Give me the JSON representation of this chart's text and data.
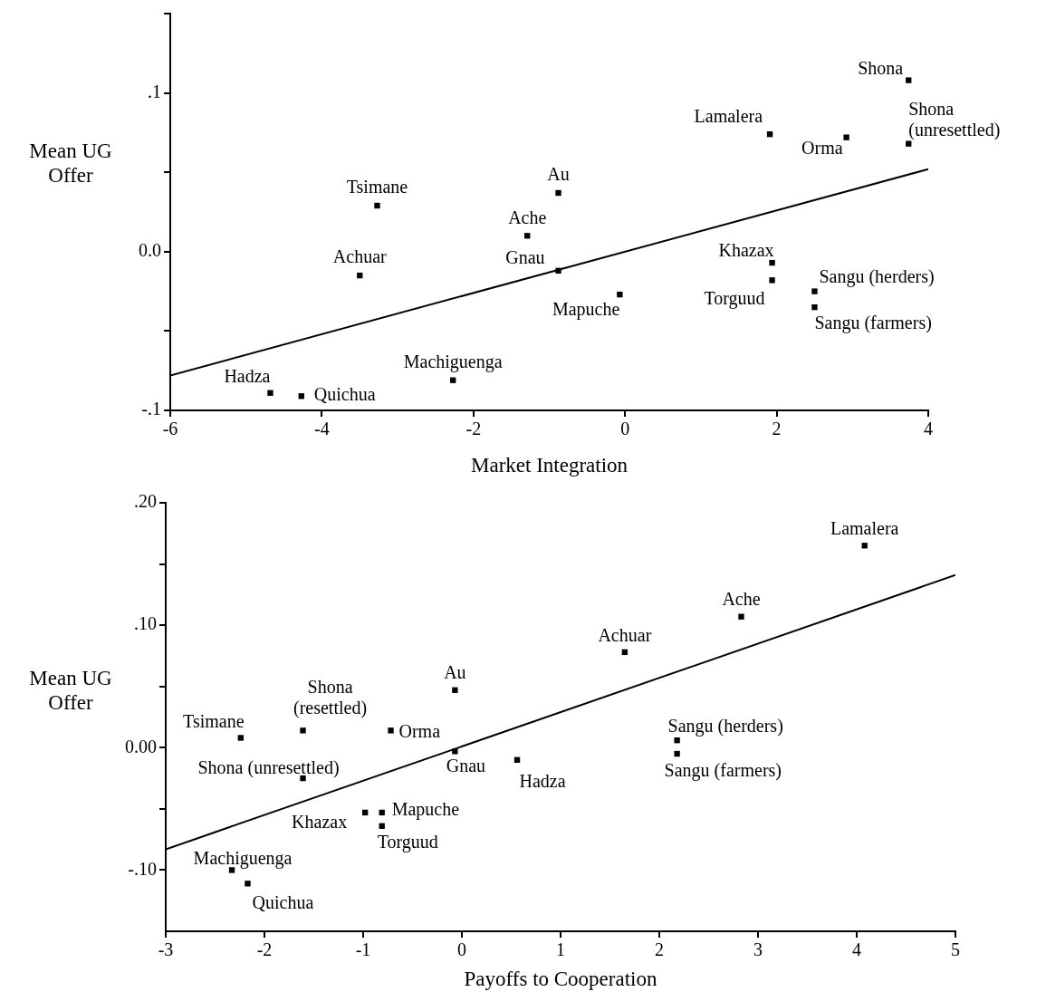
{
  "chart_data": [
    {
      "type": "scatter",
      "xlabel": "Market Integration",
      "ylabel": "Mean UG Offer",
      "xlim": [
        -6,
        4
      ],
      "ylim": [
        -0.1,
        0.15
      ],
      "xticks": [
        -6,
        -4,
        -2,
        0,
        2,
        4
      ],
      "yticks": [
        {
          "value": 0.15,
          "label": null
        },
        {
          "value": 0.1,
          "label": ".1"
        },
        {
          "value": 0.05,
          "label": null
        },
        {
          "value": 0,
          "label": "0.0"
        },
        {
          "value": -0.05,
          "label": null
        },
        {
          "value": -0.1,
          "label": "-.1"
        }
      ],
      "grid": false,
      "legend": false,
      "series": [
        {
          "type": "scatter",
          "marker": "square",
          "color": "#000000",
          "x": [
            3.74,
            1.91,
            2.92,
            3.74,
            -0.88,
            -3.27,
            -1.29,
            -3.5,
            -0.88,
            1.94,
            1.94,
            2.5,
            2.5,
            -0.07,
            -2.27,
            -4.68,
            -4.27
          ],
          "values": [
            0.108,
            0.074,
            0.072,
            0.068,
            0.037,
            0.029,
            0.01,
            -0.015,
            -0.012,
            -0.007,
            -0.018,
            -0.025,
            -0.035,
            -0.027,
            -0.081,
            -0.089,
            -0.091
          ]
        },
        {
          "type": "line",
          "marker": "none",
          "color": "#000000",
          "x": [
            -6,
            4
          ],
          "values": [
            -0.078,
            0.052
          ]
        }
      ],
      "annotations": [
        {
          "text": "Shona",
          "x": 3.74,
          "y": 0.108
        },
        {
          "text": "Lamalera",
          "x": 1.91,
          "y": 0.074
        },
        {
          "text": "Orma",
          "x": 2.92,
          "y": 0.072
        },
        {
          "text": "Shona (unresettled)",
          "x": 3.74,
          "y": 0.068
        },
        {
          "text": "Au",
          "x": -0.88,
          "y": 0.037
        },
        {
          "text": "Tsimane",
          "x": -3.27,
          "y": 0.029
        },
        {
          "text": "Ache",
          "x": -1.29,
          "y": 0.01
        },
        {
          "text": "Achuar",
          "x": -3.5,
          "y": -0.015
        },
        {
          "text": "Gnau",
          "x": -0.88,
          "y": -0.012
        },
        {
          "text": "Khazax",
          "x": 1.94,
          "y": -0.007
        },
        {
          "text": "Torguud",
          "x": 1.94,
          "y": -0.018
        },
        {
          "text": "Sangu (herders)",
          "x": 2.5,
          "y": -0.025
        },
        {
          "text": "Sangu (farmers)",
          "x": 2.5,
          "y": -0.035
        },
        {
          "text": "Mapuche",
          "x": -0.07,
          "y": -0.027
        },
        {
          "text": "Machiguenga",
          "x": -2.27,
          "y": -0.081
        },
        {
          "text": "Hadza",
          "x": -4.68,
          "y": -0.089
        },
        {
          "text": "Quichua",
          "x": -4.27,
          "y": -0.091
        }
      ]
    },
    {
      "type": "scatter",
      "xlabel": "Payoffs to Cooperation",
      "ylabel": "Mean UG Offer",
      "xlim": [
        -3,
        5
      ],
      "ylim": [
        -0.15,
        0.2
      ],
      "xticks": [
        -3,
        -2,
        -1,
        0,
        1,
        2,
        3,
        4,
        5
      ],
      "yticks": [
        {
          "value": 0.2,
          "label": ".20"
        },
        {
          "value": 0.15,
          "label": null
        },
        {
          "value": 0.1,
          "label": ".10"
        },
        {
          "value": 0.05,
          "label": null
        },
        {
          "value": 0,
          "label": "0.00"
        },
        {
          "value": -0.05,
          "label": null
        },
        {
          "value": -0.1,
          "label": "-.10"
        }
      ],
      "grid": false,
      "legend": false,
      "series": [
        {
          "type": "scatter",
          "marker": "square",
          "color": "#000000",
          "x": [
            4.08,
            2.83,
            1.65,
            -0.07,
            -1.61,
            -0.72,
            -2.24,
            -0.07,
            -1.61,
            0.56,
            2.18,
            2.18,
            -0.98,
            -0.81,
            -0.81,
            -2.33,
            -2.17
          ],
          "values": [
            0.165,
            0.107,
            0.078,
            0.047,
            0.014,
            0.014,
            0.008,
            -0.003,
            -0.025,
            -0.01,
            0.006,
            -0.005,
            -0.053,
            -0.053,
            -0.064,
            -0.1,
            -0.111
          ]
        },
        {
          "type": "line",
          "marker": "none",
          "color": "#000000",
          "x": [
            -3,
            5
          ],
          "values": [
            -0.083,
            0.141
          ]
        }
      ],
      "annotations": [
        {
          "text": "Lamalera",
          "x": 4.08,
          "y": 0.165
        },
        {
          "text": "Ache",
          "x": 2.83,
          "y": 0.107
        },
        {
          "text": "Achuar",
          "x": 1.65,
          "y": 0.078
        },
        {
          "text": "Au",
          "x": -0.07,
          "y": 0.047
        },
        {
          "text": "Shona (resettled)",
          "x": -1.61,
          "y": 0.014
        },
        {
          "text": "Orma",
          "x": -0.72,
          "y": 0.014
        },
        {
          "text": "Tsimane",
          "x": -2.24,
          "y": 0.008
        },
        {
          "text": "Gnau",
          "x": -0.07,
          "y": -0.003
        },
        {
          "text": "Shona (unresettled)",
          "x": -1.61,
          "y": -0.025
        },
        {
          "text": "Hadza",
          "x": 0.56,
          "y": -0.01
        },
        {
          "text": "Sangu (herders)",
          "x": 2.18,
          "y": 0.006
        },
        {
          "text": "Sangu (farmers)",
          "x": 2.18,
          "y": -0.005
        },
        {
          "text": "Khazax",
          "x": -0.98,
          "y": -0.053
        },
        {
          "text": "Mapuche",
          "x": -0.81,
          "y": -0.053
        },
        {
          "text": "Torguud",
          "x": -0.81,
          "y": -0.064
        },
        {
          "text": "Machiguenga",
          "x": -2.33,
          "y": -0.1
        },
        {
          "text": "Quichua",
          "x": -2.17,
          "y": -0.111
        }
      ]
    }
  ]
}
